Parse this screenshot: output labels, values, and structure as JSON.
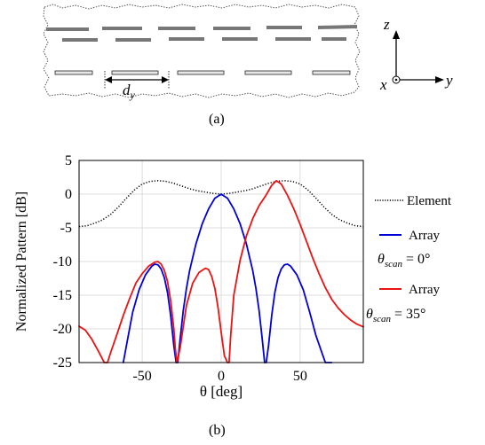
{
  "figure": {
    "subfig_a_caption": "(a)",
    "subfig_b_caption": "(b)"
  },
  "schematic": {
    "spacing_label_main": "d",
    "spacing_label_sub": "y",
    "axis_z": "z",
    "axis_y": "y",
    "axis_x": "x"
  },
  "chart_data": {
    "type": "line",
    "xlabel": "θ [deg]",
    "ylabel": "Normalized Pattern [dB]",
    "xlim": [
      -90,
      90
    ],
    "ylim": [
      -25,
      5
    ],
    "xticks": [
      -50,
      0,
      50
    ],
    "yticks": [
      5,
      0,
      -5,
      -10,
      -15,
      -20,
      -25
    ],
    "grid": true,
    "legend_position": "right outside",
    "series": [
      {
        "name": "Element",
        "color": "#000000",
        "style": "dotted",
        "x": [
          -90,
          -85,
          -80,
          -75,
          -70,
          -65,
          -60,
          -55,
          -50,
          -45,
          -40,
          -35,
          -30,
          -25,
          -20,
          -15,
          -10,
          -5,
          0,
          5,
          10,
          15,
          20,
          25,
          30,
          35,
          40,
          45,
          50,
          55,
          60,
          65,
          70,
          75,
          80,
          85,
          90
        ],
        "y": [
          -4.8,
          -4.7,
          -4.3,
          -3.8,
          -3.0,
          -1.9,
          -0.6,
          0.6,
          1.5,
          1.9,
          2.0,
          1.9,
          1.6,
          1.2,
          0.8,
          0.5,
          0.3,
          0.1,
          0.0,
          0.1,
          0.3,
          0.5,
          0.8,
          1.2,
          1.6,
          1.9,
          2.0,
          1.9,
          1.5,
          0.6,
          -0.6,
          -1.9,
          -3.0,
          -3.8,
          -4.3,
          -4.7,
          -4.8
        ]
      },
      {
        "name": "Array",
        "label_line2": "θscan = 0°",
        "color": "#0000dd",
        "style": "solid",
        "x": [
          -62,
          -60,
          -56,
          -52,
          -48,
          -44,
          -42,
          -40,
          -38,
          -36,
          -34,
          -32,
          -30,
          -28.5,
          -27.5,
          -26,
          -24,
          -22,
          -20,
          -16,
          -12,
          -8,
          -4,
          0,
          4,
          8,
          12,
          16,
          20,
          22,
          24,
          26,
          27.5,
          28.5,
          30,
          32,
          34,
          36,
          38,
          40,
          42,
          44,
          48,
          52,
          56,
          60,
          64,
          66,
          70
        ],
        "y": [
          -25,
          -22.5,
          -17.5,
          -14.2,
          -12.0,
          -10.7,
          -10.4,
          -10.5,
          -11.1,
          -12.4,
          -14.6,
          -18.0,
          -22.5,
          -25,
          -25,
          -21.5,
          -17.3,
          -14.0,
          -11.4,
          -7.4,
          -4.4,
          -2.2,
          -0.6,
          0.0,
          -0.6,
          -2.2,
          -4.4,
          -7.4,
          -11.4,
          -14.0,
          -17.3,
          -21.5,
          -25,
          -25,
          -22.5,
          -18.0,
          -14.6,
          -12.4,
          -11.1,
          -10.5,
          -10.4,
          -10.7,
          -12.0,
          -14.2,
          -17.5,
          -21.0,
          -23.7,
          -25,
          -25
        ]
      },
      {
        "name": "Array",
        "label_line2": "θscan = 35°",
        "color": "#ee1111",
        "style": "solid",
        "x": [
          -90,
          -86,
          -82,
          -78,
          -74,
          -72,
          -70,
          -66,
          -62,
          -58,
          -54,
          -50,
          -46,
          -42,
          -40,
          -38,
          -36,
          -34,
          -32,
          -30,
          -29,
          -28,
          -26,
          -22,
          -18,
          -14,
          -10,
          -8,
          -6,
          -4,
          -2,
          0,
          2,
          4,
          5,
          6,
          8,
          12,
          16,
          20,
          24,
          28,
          32,
          35,
          38,
          42,
          46,
          50,
          54,
          58,
          62,
          66,
          70,
          74,
          78,
          82,
          86,
          90
        ],
        "y": [
          -19.6,
          -20.2,
          -21.5,
          -23.2,
          -25,
          -25,
          -23.5,
          -20.8,
          -18.0,
          -15.5,
          -13.2,
          -11.8,
          -10.7,
          -10.1,
          -10.0,
          -10.4,
          -11.3,
          -13.0,
          -15.8,
          -20.0,
          -23.0,
          -25,
          -22.8,
          -16.5,
          -13.2,
          -11.6,
          -11.0,
          -11.2,
          -12.2,
          -14.0,
          -16.8,
          -20.5,
          -24.0,
          -25,
          -25,
          -21.0,
          -15.0,
          -9.8,
          -6.2,
          -3.6,
          -1.7,
          -0.3,
          1.3,
          2.0,
          1.5,
          -0.2,
          -2.2,
          -4.5,
          -7.0,
          -9.5,
          -11.8,
          -13.9,
          -15.6,
          -16.9,
          -17.9,
          -18.7,
          -19.3,
          -19.7
        ]
      }
    ]
  }
}
